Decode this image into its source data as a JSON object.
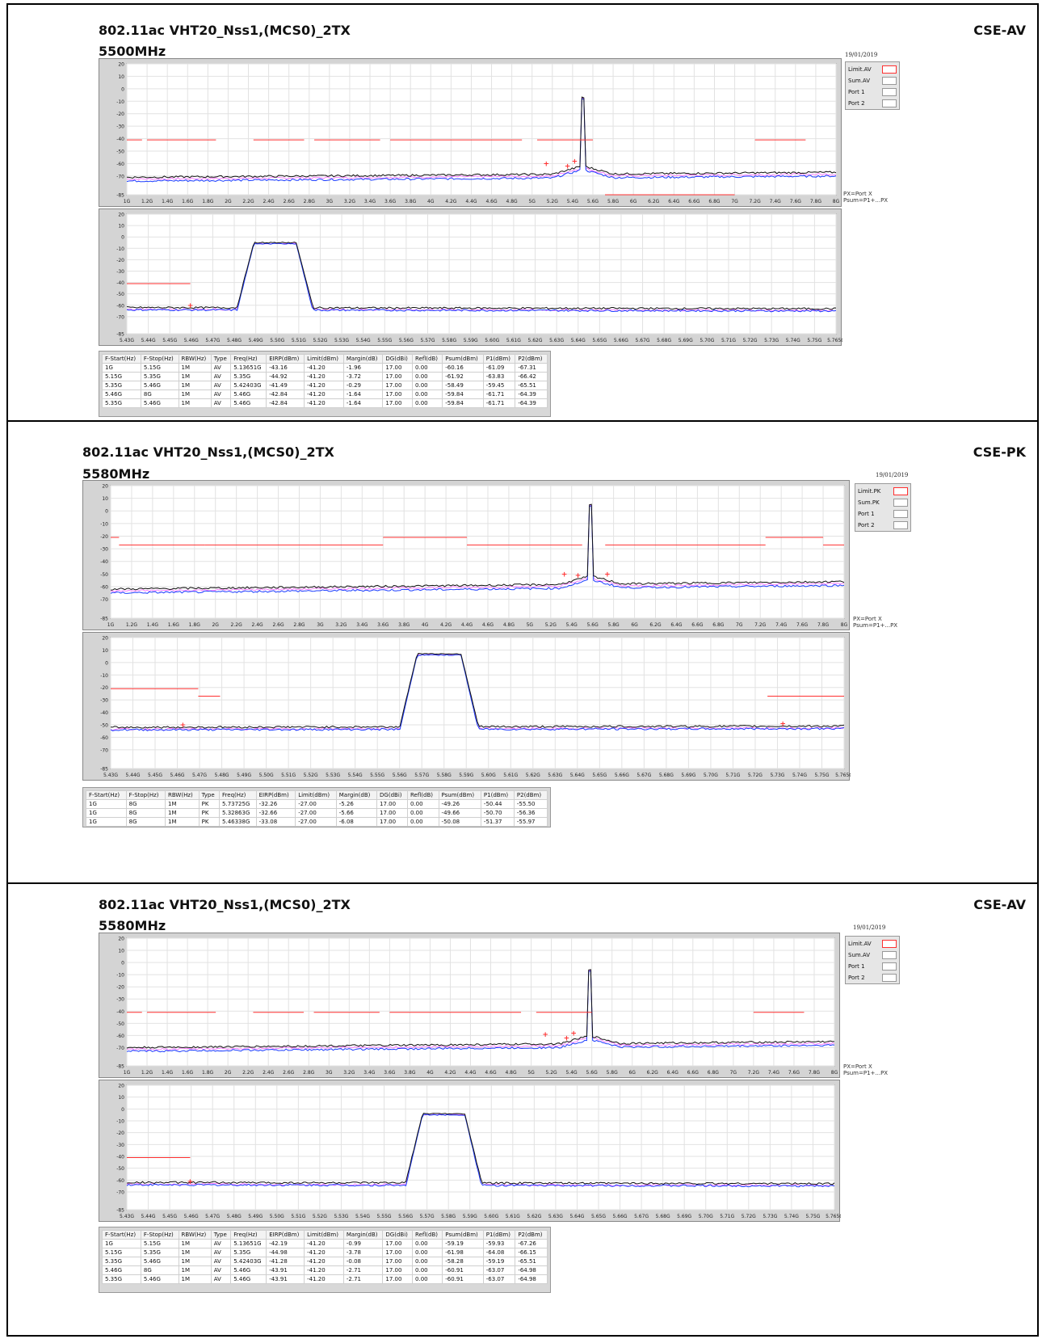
{
  "sections": [
    {
      "title": "802.11ac VHT20_Nss1,(MCS0)_2TX",
      "freq": "5500MHz",
      "mode": "CSE-AV",
      "date": "19/01/2019",
      "legend": [
        "Limit.AV",
        "Sum.AV",
        "Port 1",
        "Port 2"
      ],
      "note": [
        "PX=Port X",
        "Psum=P1+...PX"
      ],
      "table": {
        "headers": [
          "F-Start(Hz)",
          "F-Stop(Hz)",
          "RBW(Hz)",
          "Type",
          "Freq(Hz)",
          "EIRP(dBm)",
          "Limit(dBm)",
          "Margin(dB)",
          "DG(dBi)",
          "Refl(dB)",
          "Psum(dBm)",
          "P1(dBm)",
          "P2(dBm)"
        ],
        "rows": [
          [
            "1G",
            "5.15G",
            "1M",
            "AV",
            "5.13651G",
            "-43.16",
            "-41.20",
            "-1.96",
            "17.00",
            "0.00",
            "-60.16",
            "-61.09",
            "-67.31"
          ],
          [
            "5.15G",
            "5.35G",
            "1M",
            "AV",
            "5.35G",
            "-44.92",
            "-41.20",
            "-3.72",
            "17.00",
            "0.00",
            "-61.92",
            "-63.83",
            "-66.42"
          ],
          [
            "5.35G",
            "5.46G",
            "1M",
            "AV",
            "5.42403G",
            "-41.49",
            "-41.20",
            "-0.29",
            "17.00",
            "0.00",
            "-58.49",
            "-59.45",
            "-65.51"
          ],
          [
            "5.46G",
            "8G",
            "1M",
            "AV",
            "5.46G",
            "-42.84",
            "-41.20",
            "-1.64",
            "17.00",
            "0.00",
            "-59.84",
            "-61.71",
            "-64.39"
          ],
          [
            "5.35G",
            "5.46G",
            "1M",
            "AV",
            "5.46G",
            "-42.84",
            "-41.20",
            "-1.64",
            "17.00",
            "0.00",
            "-59.84",
            "-61.71",
            "-64.39"
          ]
        ]
      }
    },
    {
      "title": "802.11ac VHT20_Nss1,(MCS0)_2TX",
      "freq": "5580MHz",
      "mode": "CSE-PK",
      "date": "19/01/2019",
      "legend": [
        "Limit.PK",
        "Sum.PK",
        "Port 1",
        "Port 2"
      ],
      "note": [
        "PX=Port X",
        "Psum=P1+...PX"
      ],
      "table": {
        "headers": [
          "F-Start(Hz)",
          "F-Stop(Hz)",
          "RBW(Hz)",
          "Type",
          "Freq(Hz)",
          "EIRP(dBm)",
          "Limit(dBm)",
          "Margin(dB)",
          "DG(dBi)",
          "Refl(dB)",
          "Psum(dBm)",
          "P1(dBm)",
          "P2(dBm)"
        ],
        "rows": [
          [
            "1G",
            "8G",
            "1M",
            "PK",
            "5.73725G",
            "-32.26",
            "-27.00",
            "-5.26",
            "17.00",
            "0.00",
            "-49.26",
            "-50.44",
            "-55.50"
          ],
          [
            "1G",
            "8G",
            "1M",
            "PK",
            "5.32863G",
            "-32.66",
            "-27.00",
            "-5.66",
            "17.00",
            "0.00",
            "-49.66",
            "-50.70",
            "-56.36"
          ],
          [
            "1G",
            "8G",
            "1M",
            "PK",
            "5.46338G",
            "-33.08",
            "-27.00",
            "-6.08",
            "17.00",
            "0.00",
            "-50.08",
            "-51.37",
            "-55.97"
          ]
        ]
      }
    },
    {
      "title": "802.11ac VHT20_Nss1,(MCS0)_2TX",
      "freq": "5580MHz",
      "mode": "CSE-AV",
      "date": "19/01/2019",
      "legend": [
        "Limit.AV",
        "Sum.AV",
        "Port 1",
        "Port 2"
      ],
      "note": [
        "PX=Port X",
        "Psum=P1+...PX"
      ],
      "table": {
        "headers": [
          "F-Start(Hz)",
          "F-Stop(Hz)",
          "RBW(Hz)",
          "Type",
          "Freq(Hz)",
          "EIRP(dBm)",
          "Limit(dBm)",
          "Margin(dB)",
          "DG(dBi)",
          "Refl(dB)",
          "Psum(dBm)",
          "P1(dBm)",
          "P2(dBm)"
        ],
        "rows": [
          [
            "1G",
            "5.15G",
            "1M",
            "AV",
            "5.13651G",
            "-42.19",
            "-41.20",
            "-0.99",
            "17.00",
            "0.00",
            "-59.19",
            "-59.93",
            "-67.26"
          ],
          [
            "5.15G",
            "5.35G",
            "1M",
            "AV",
            "5.35G",
            "-44.98",
            "-41.20",
            "-3.78",
            "17.00",
            "0.00",
            "-61.98",
            "-64.08",
            "-66.15"
          ],
          [
            "5.35G",
            "5.46G",
            "1M",
            "AV",
            "5.42403G",
            "-41.28",
            "-41.20",
            "-0.08",
            "17.00",
            "0.00",
            "-58.28",
            "-59.19",
            "-65.51"
          ],
          [
            "5.46G",
            "8G",
            "1M",
            "AV",
            "5.46G",
            "-43.91",
            "-41.20",
            "-2.71",
            "17.00",
            "0.00",
            "-60.91",
            "-63.07",
            "-64.98"
          ],
          [
            "5.35G",
            "5.46G",
            "1M",
            "AV",
            "5.46G",
            "-43.91",
            "-41.20",
            "-2.71",
            "17.00",
            "0.00",
            "-60.91",
            "-63.07",
            "-64.98"
          ]
        ]
      }
    }
  ],
  "chart_data": [
    {
      "type": "line",
      "id": "s0-wide",
      "yticks": [
        "20",
        "10",
        "0",
        "-10",
        "-20",
        "-30",
        "-40",
        "-50",
        "-60",
        "-70",
        "-85"
      ],
      "xticks": [
        "1G",
        "1.2G",
        "1.4G",
        "1.6G",
        "1.8G",
        "2G",
        "2.2G",
        "2.4G",
        "2.6G",
        "2.8G",
        "3G",
        "3.2G",
        "3.4G",
        "3.6G",
        "3.8G",
        "4G",
        "4.2G",
        "4.4G",
        "4.6G",
        "4.8G",
        "5G",
        "5.2G",
        "5.4G",
        "5.6G",
        "5.8G",
        "6G",
        "6.2G",
        "6.4G",
        "6.6G",
        "6.8G",
        "7G",
        "7.2G",
        "7.4G",
        "7.6G",
        "7.8G",
        "8G"
      ],
      "xlim": [
        1,
        8
      ],
      "ylim": [
        -85,
        20
      ],
      "limit_segments": [
        [
          1.0,
          1.15,
          -41
        ],
        [
          1.2,
          1.88,
          -41
        ],
        [
          2.25,
          2.75,
          -41
        ],
        [
          2.85,
          3.5,
          -41
        ],
        [
          3.6,
          4.9,
          -41
        ],
        [
          5.05,
          5.6,
          -41
        ],
        [
          5.72,
          7.0,
          -85
        ],
        [
          7.2,
          7.7,
          -41
        ]
      ],
      "peak": {
        "x": 5.5,
        "y": -5
      },
      "noise": {
        "start": -71,
        "end": -67,
        "port1_offset": -3
      },
      "markers": [
        [
          5.14,
          -60
        ],
        [
          5.35,
          -62
        ],
        [
          5.42,
          -58
        ]
      ]
    },
    {
      "type": "line",
      "id": "s0-zoom",
      "yticks": [
        "20",
        "10",
        "0",
        "-10",
        "-20",
        "-30",
        "-40",
        "-50",
        "-60",
        "-70",
        "-85"
      ],
      "xticks": [
        "5.43G",
        "5.44G",
        "5.45G",
        "5.46G",
        "5.47G",
        "5.48G",
        "5.49G",
        "5.50G",
        "5.51G",
        "5.52G",
        "5.53G",
        "5.54G",
        "5.55G",
        "5.56G",
        "5.57G",
        "5.58G",
        "5.59G",
        "5.60G",
        "5.61G",
        "5.62G",
        "5.63G",
        "5.64G",
        "5.65G",
        "5.66G",
        "5.67G",
        "5.68G",
        "5.69G",
        "5.70G",
        "5.71G",
        "5.72G",
        "5.73G",
        "5.74G",
        "5.75G",
        "5.765G"
      ],
      "xlim": [
        5.43,
        5.765
      ],
      "ylim": [
        -85,
        20
      ],
      "limit_segments": [
        [
          5.43,
          5.46,
          -41
        ]
      ],
      "band": {
        "lo": 5.49,
        "hi": 5.51,
        "top": -5
      },
      "noise": {
        "start": -62,
        "end": -63,
        "port1_offset": -2
      },
      "markers": [
        [
          5.46,
          -60
        ]
      ]
    },
    {
      "type": "line",
      "id": "s1-wide",
      "yticks": [
        "20",
        "10",
        "0",
        "-10",
        "-20",
        "-30",
        "-40",
        "-50",
        "-60",
        "-70",
        "-85"
      ],
      "xticks": [
        "1G",
        "1.2G",
        "1.4G",
        "1.6G",
        "1.8G",
        "2G",
        "2.2G",
        "2.4G",
        "2.6G",
        "2.8G",
        "3G",
        "3.2G",
        "3.4G",
        "3.6G",
        "3.8G",
        "4G",
        "4.2G",
        "4.4G",
        "4.6G",
        "4.8G",
        "5G",
        "5.2G",
        "5.4G",
        "5.6G",
        "5.8G",
        "6G",
        "6.2G",
        "6.4G",
        "6.6G",
        "6.8G",
        "7G",
        "7.2G",
        "7.4G",
        "7.6G",
        "7.8G",
        "8G"
      ],
      "xlim": [
        1,
        8
      ],
      "ylim": [
        -85,
        20
      ],
      "limit_segments": [
        [
          1.0,
          1.08,
          -21
        ],
        [
          1.08,
          1.9,
          -27
        ],
        [
          1.9,
          2.9,
          -27
        ],
        [
          2.9,
          3.6,
          -27
        ],
        [
          3.6,
          4.4,
          -21
        ],
        [
          4.4,
          5.5,
          -27
        ],
        [
          5.72,
          7.25,
          -27
        ],
        [
          7.25,
          7.8,
          -21
        ],
        [
          7.8,
          8.0,
          -27
        ]
      ],
      "peak": {
        "x": 5.58,
        "y": 7
      },
      "noise": {
        "start": -62,
        "end": -56,
        "port1_offset": -3
      },
      "markers": [
        [
          5.33,
          -50
        ],
        [
          5.46,
          -51
        ],
        [
          5.74,
          -50
        ]
      ]
    },
    {
      "type": "line",
      "id": "s1-zoom",
      "yticks": [
        "20",
        "10",
        "0",
        "-10",
        "-20",
        "-30",
        "-40",
        "-50",
        "-60",
        "-70",
        "-85"
      ],
      "xticks": [
        "5.43G",
        "5.44G",
        "5.45G",
        "5.46G",
        "5.47G",
        "5.48G",
        "5.49G",
        "5.50G",
        "5.51G",
        "5.52G",
        "5.53G",
        "5.54G",
        "5.55G",
        "5.56G",
        "5.57G",
        "5.58G",
        "5.59G",
        "5.60G",
        "5.61G",
        "5.62G",
        "5.63G",
        "5.64G",
        "5.65G",
        "5.66G",
        "5.67G",
        "5.68G",
        "5.69G",
        "5.70G",
        "5.71G",
        "5.72G",
        "5.73G",
        "5.74G",
        "5.75G",
        "5.765G"
      ],
      "xlim": [
        5.43,
        5.765
      ],
      "ylim": [
        -85,
        20
      ],
      "limit_segments": [
        [
          5.43,
          5.47,
          -21
        ],
        [
          5.47,
          5.48,
          -27
        ],
        [
          5.73,
          5.765,
          -27
        ]
      ],
      "band": {
        "lo": 5.57,
        "hi": 5.59,
        "top": 7
      },
      "noise": {
        "start": -52,
        "end": -51,
        "port1_offset": -2
      },
      "markers": [
        [
          5.463,
          -50
        ],
        [
          5.737,
          -49
        ]
      ]
    },
    {
      "type": "line",
      "id": "s2-wide",
      "yticks": [
        "20",
        "10",
        "0",
        "-10",
        "-20",
        "-30",
        "-40",
        "-50",
        "-60",
        "-70",
        "-85"
      ],
      "xticks": [
        "1G",
        "1.2G",
        "1.4G",
        "1.6G",
        "1.8G",
        "2G",
        "2.2G",
        "2.4G",
        "2.6G",
        "2.8G",
        "3G",
        "3.2G",
        "3.4G",
        "3.6G",
        "3.8G",
        "4G",
        "4.2G",
        "4.4G",
        "4.6G",
        "4.8G",
        "5G",
        "5.2G",
        "5.4G",
        "5.6G",
        "5.8G",
        "6G",
        "6.2G",
        "6.4G",
        "6.6G",
        "6.8G",
        "7G",
        "7.2G",
        "7.4G",
        "7.6G",
        "7.8G",
        "8G"
      ],
      "xlim": [
        1,
        8
      ],
      "ylim": [
        -85,
        20
      ],
      "limit_segments": [
        [
          1.0,
          1.15,
          -41
        ],
        [
          1.2,
          1.88,
          -41
        ],
        [
          2.25,
          2.75,
          -41
        ],
        [
          2.85,
          3.5,
          -41
        ],
        [
          3.6,
          4.9,
          -41
        ],
        [
          5.05,
          5.6,
          -41
        ],
        [
          7.2,
          7.7,
          -41
        ]
      ],
      "peak": {
        "x": 5.58,
        "y": -4
      },
      "noise": {
        "start": -70,
        "end": -65,
        "port1_offset": -3
      },
      "markers": [
        [
          5.14,
          -59
        ],
        [
          5.35,
          -62
        ],
        [
          5.42,
          -58
        ]
      ]
    },
    {
      "type": "line",
      "id": "s2-zoom",
      "yticks": [
        "20",
        "10",
        "0",
        "-10",
        "-20",
        "-30",
        "-40",
        "-50",
        "-60",
        "-70",
        "-85"
      ],
      "xticks": [
        "5.43G",
        "5.44G",
        "5.45G",
        "5.46G",
        "5.47G",
        "5.48G",
        "5.49G",
        "5.50G",
        "5.51G",
        "5.52G",
        "5.53G",
        "5.54G",
        "5.55G",
        "5.56G",
        "5.57G",
        "5.58G",
        "5.59G",
        "5.60G",
        "5.61G",
        "5.62G",
        "5.63G",
        "5.64G",
        "5.65G",
        "5.66G",
        "5.67G",
        "5.68G",
        "5.69G",
        "5.70G",
        "5.71G",
        "5.72G",
        "5.73G",
        "5.74G",
        "5.75G",
        "5.765G"
      ],
      "xlim": [
        5.43,
        5.765
      ],
      "ylim": [
        -85,
        20
      ],
      "limit_segments": [
        [
          5.43,
          5.46,
          -41
        ]
      ],
      "band": {
        "lo": 5.57,
        "hi": 5.59,
        "top": -4
      },
      "noise": {
        "start": -62,
        "end": -63,
        "port1_offset": -2
      },
      "markers": [
        [
          5.46,
          -61
        ]
      ]
    }
  ],
  "colors": {
    "limit": "#ff3030",
    "sum": "#111111",
    "port1": "#1a3cff",
    "port2": "#ff66ff",
    "grid": "#ffffff",
    "plot_bg": "#ffffff"
  }
}
